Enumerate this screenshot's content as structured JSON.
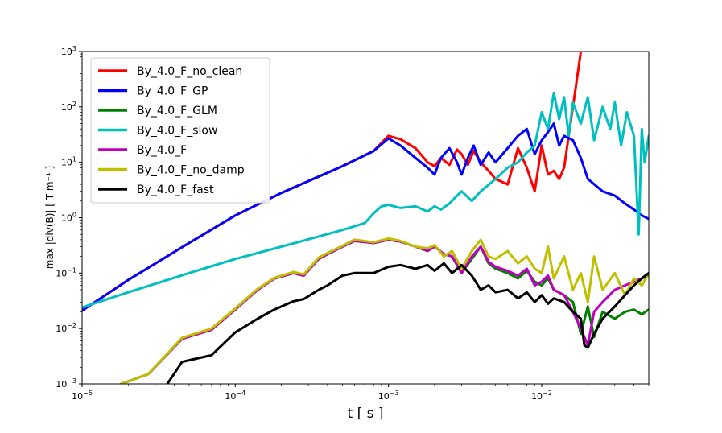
{
  "chart_data": {
    "type": "line",
    "title": "",
    "xlabel": "t [ s ]",
    "ylabel": "max |div(B)| [ T m⁻¹ ]",
    "xscale": "log",
    "yscale": "log",
    "xlim": [
      1e-05,
      0.05
    ],
    "ylim": [
      0.001,
      1000
    ],
    "legend_position": "top-left",
    "x_ticks": [
      {
        "value": 1e-05,
        "base": "10",
        "exp": "−5"
      },
      {
        "value": 0.0001,
        "base": "10",
        "exp": "−4"
      },
      {
        "value": 0.001,
        "base": "10",
        "exp": "−3"
      },
      {
        "value": 0.01,
        "base": "10",
        "exp": "−2"
      }
    ],
    "y_ticks": [
      {
        "value": 0.001,
        "base": "10",
        "exp": "−3"
      },
      {
        "value": 0.01,
        "base": "10",
        "exp": "−2"
      },
      {
        "value": 0.1,
        "base": "10",
        "exp": "−1"
      },
      {
        "value": 1,
        "base": "10",
        "exp": "0"
      },
      {
        "value": 10,
        "base": "10",
        "exp": "1"
      },
      {
        "value": 100,
        "base": "10",
        "exp": "2"
      },
      {
        "value": 1000,
        "base": "10",
        "exp": "3"
      }
    ],
    "series": [
      {
        "name": "By_4.0_F_no_clean",
        "color": "#ff0000",
        "x": [
          1e-05,
          2e-05,
          5e-05,
          0.0001,
          0.0002,
          0.0005,
          0.0008,
          0.001,
          0.0012,
          0.0015,
          0.0018,
          0.002,
          0.0022,
          0.0025,
          0.0028,
          0.003,
          0.0033,
          0.0036,
          0.004,
          0.0045,
          0.005,
          0.006,
          0.007,
          0.008,
          0.009,
          0.01,
          0.011,
          0.012,
          0.013,
          0.014,
          0.016,
          0.018
        ],
        "y": [
          0.021,
          0.075,
          0.35,
          1.1,
          2.8,
          8.5,
          16,
          30,
          26,
          18,
          10,
          8.5,
          12,
          9,
          17,
          14,
          9,
          16,
          10,
          7,
          5,
          4,
          18,
          8,
          3,
          20,
          6,
          7,
          5,
          8,
          100,
          1000
        ]
      },
      {
        "name": "By_4.0_F_GP",
        "color": "#0000ff",
        "x": [
          1e-05,
          2e-05,
          5e-05,
          0.0001,
          0.0002,
          0.0005,
          0.0008,
          0.001,
          0.0012,
          0.0015,
          0.0018,
          0.002,
          0.0022,
          0.0025,
          0.0028,
          0.003,
          0.0033,
          0.0036,
          0.004,
          0.0045,
          0.005,
          0.006,
          0.007,
          0.008,
          0.009,
          0.01,
          0.011,
          0.012,
          0.013,
          0.014,
          0.016,
          0.018,
          0.02,
          0.025,
          0.03,
          0.035,
          0.04,
          0.045,
          0.05
        ],
        "y": [
          0.021,
          0.075,
          0.35,
          1.1,
          2.8,
          8.5,
          16,
          27,
          20,
          12,
          8,
          6,
          12,
          18,
          10,
          6,
          12,
          20,
          9,
          15,
          10,
          18,
          30,
          40,
          14,
          25,
          35,
          50,
          20,
          30,
          25,
          12,
          5,
          3,
          2.5,
          1.8,
          1.4,
          1.1,
          0.95
        ]
      },
      {
        "name": "By_4.0_F_GLM",
        "color": "#008000",
        "x": [
          1.8e-05,
          2.7e-05,
          4.5e-05,
          7e-05,
          0.0001,
          0.00014,
          0.00018,
          0.00024,
          0.00028,
          0.00035,
          0.0004,
          0.0005,
          0.0006,
          0.0008,
          0.001,
          0.0012,
          0.0015,
          0.0018,
          0.002,
          0.0023,
          0.0026,
          0.003,
          0.0035,
          0.004,
          0.0045,
          0.005,
          0.006,
          0.007,
          0.008,
          0.009,
          0.01,
          0.011,
          0.012,
          0.014,
          0.016,
          0.018,
          0.02,
          0.022,
          0.025,
          0.03,
          0.035,
          0.04,
          0.045,
          0.05
        ],
        "y": [
          0.001,
          0.0015,
          0.0065,
          0.0095,
          0.022,
          0.05,
          0.08,
          0.1,
          0.09,
          0.18,
          0.22,
          0.3,
          0.38,
          0.35,
          0.4,
          0.37,
          0.3,
          0.25,
          0.3,
          0.22,
          0.2,
          0.1,
          0.18,
          0.3,
          0.15,
          0.12,
          0.1,
          0.08,
          0.11,
          0.07,
          0.06,
          0.08,
          0.05,
          0.04,
          0.03,
          0.008,
          0.025,
          0.007,
          0.02,
          0.015,
          0.02,
          0.022,
          0.018,
          0.022
        ]
      },
      {
        "name": "By_4.0_F_slow",
        "color": "#00bfbf",
        "x": [
          1e-05,
          2e-05,
          5e-05,
          0.0001,
          0.0002,
          0.0005,
          0.0007,
          0.0008,
          0.0009,
          0.001,
          0.0012,
          0.0015,
          0.0018,
          0.002,
          0.0022,
          0.0025,
          0.0028,
          0.003,
          0.0035,
          0.004,
          0.005,
          0.006,
          0.007,
          0.008,
          0.009,
          0.01,
          0.011,
          0.012,
          0.013,
          0.014,
          0.015,
          0.016,
          0.018,
          0.02,
          0.022,
          0.025,
          0.028,
          0.03,
          0.033,
          0.036,
          0.04,
          0.043,
          0.045,
          0.047,
          0.05
        ],
        "y": [
          0.024,
          0.045,
          0.1,
          0.18,
          0.3,
          0.6,
          0.8,
          1.2,
          1.6,
          1.7,
          1.5,
          1.6,
          1.3,
          1.6,
          1.4,
          1.8,
          2.5,
          3,
          2,
          3,
          5,
          8,
          10,
          15,
          20,
          80,
          40,
          180,
          60,
          150,
          30,
          120,
          50,
          150,
          25,
          100,
          40,
          120,
          20,
          80,
          30,
          0.5,
          40,
          10,
          30
        ]
      },
      {
        "name": "By_4.0_F",
        "color": "#bf00bf",
        "x": [
          1.8e-05,
          2.7e-05,
          4.5e-05,
          7e-05,
          0.0001,
          0.00014,
          0.00018,
          0.00024,
          0.00028,
          0.00035,
          0.0004,
          0.0005,
          0.0006,
          0.0008,
          0.001,
          0.0012,
          0.0015,
          0.0018,
          0.002,
          0.0023,
          0.0026,
          0.003,
          0.0035,
          0.004,
          0.0045,
          0.005,
          0.006,
          0.007,
          0.008,
          0.009,
          0.01,
          0.011,
          0.012,
          0.014,
          0.016,
          0.018,
          0.02,
          0.022,
          0.025,
          0.03,
          0.035,
          0.04,
          0.045,
          0.05
        ],
        "y": [
          0.001,
          0.0015,
          0.0065,
          0.0095,
          0.022,
          0.05,
          0.08,
          0.1,
          0.09,
          0.18,
          0.22,
          0.3,
          0.38,
          0.35,
          0.4,
          0.37,
          0.3,
          0.25,
          0.3,
          0.22,
          0.2,
          0.1,
          0.2,
          0.3,
          0.16,
          0.13,
          0.11,
          0.09,
          0.12,
          0.06,
          0.07,
          0.09,
          0.05,
          0.04,
          0.02,
          0.01,
          0.005,
          0.02,
          0.03,
          0.05,
          0.06,
          0.07,
          0.08,
          0.09
        ]
      },
      {
        "name": "By_4.0_F_no_damp",
        "color": "#bfbf00",
        "x": [
          1.8e-05,
          2.7e-05,
          4.5e-05,
          7e-05,
          0.0001,
          0.00014,
          0.00018,
          0.00024,
          0.00028,
          0.00035,
          0.0004,
          0.0005,
          0.0006,
          0.0008,
          0.001,
          0.0012,
          0.0015,
          0.0018,
          0.002,
          0.0023,
          0.0026,
          0.003,
          0.0035,
          0.004,
          0.0045,
          0.005,
          0.006,
          0.007,
          0.008,
          0.009,
          0.01,
          0.011,
          0.012,
          0.014,
          0.016,
          0.018,
          0.02,
          0.022,
          0.025,
          0.03,
          0.035,
          0.04,
          0.045,
          0.05
        ],
        "y": [
          0.001,
          0.0015,
          0.0068,
          0.01,
          0.023,
          0.052,
          0.082,
          0.105,
          0.095,
          0.19,
          0.23,
          0.31,
          0.4,
          0.36,
          0.42,
          0.38,
          0.3,
          0.28,
          0.32,
          0.2,
          0.25,
          0.12,
          0.25,
          0.4,
          0.2,
          0.18,
          0.25,
          0.15,
          0.2,
          0.12,
          0.1,
          0.3,
          0.08,
          0.2,
          0.05,
          0.1,
          0.03,
          0.2,
          0.05,
          0.1,
          0.04,
          0.08,
          0.06,
          0.1
        ]
      },
      {
        "name": "By_4.0_F_fast",
        "color": "#000000",
        "x": [
          3.6e-05,
          4.5e-05,
          7e-05,
          0.0001,
          0.00014,
          0.00018,
          0.00024,
          0.00028,
          0.00035,
          0.0004,
          0.0005,
          0.0006,
          0.0008,
          0.001,
          0.0012,
          0.0015,
          0.0018,
          0.002,
          0.0023,
          0.0026,
          0.003,
          0.0035,
          0.004,
          0.0045,
          0.005,
          0.006,
          0.007,
          0.008,
          0.009,
          0.01,
          0.011,
          0.012,
          0.014,
          0.016,
          0.018,
          0.019,
          0.02,
          0.022,
          0.025,
          0.03,
          0.035,
          0.04,
          0.045,
          0.05
        ],
        "y": [
          0.001,
          0.0025,
          0.0033,
          0.0085,
          0.015,
          0.022,
          0.031,
          0.034,
          0.05,
          0.06,
          0.09,
          0.1,
          0.1,
          0.13,
          0.14,
          0.12,
          0.14,
          0.11,
          0.15,
          0.1,
          0.14,
          0.09,
          0.05,
          0.06,
          0.045,
          0.05,
          0.035,
          0.045,
          0.03,
          0.04,
          0.028,
          0.035,
          0.03,
          0.02,
          0.015,
          0.005,
          0.0045,
          0.008,
          0.015,
          0.025,
          0.04,
          0.06,
          0.08,
          0.1
        ]
      }
    ]
  }
}
